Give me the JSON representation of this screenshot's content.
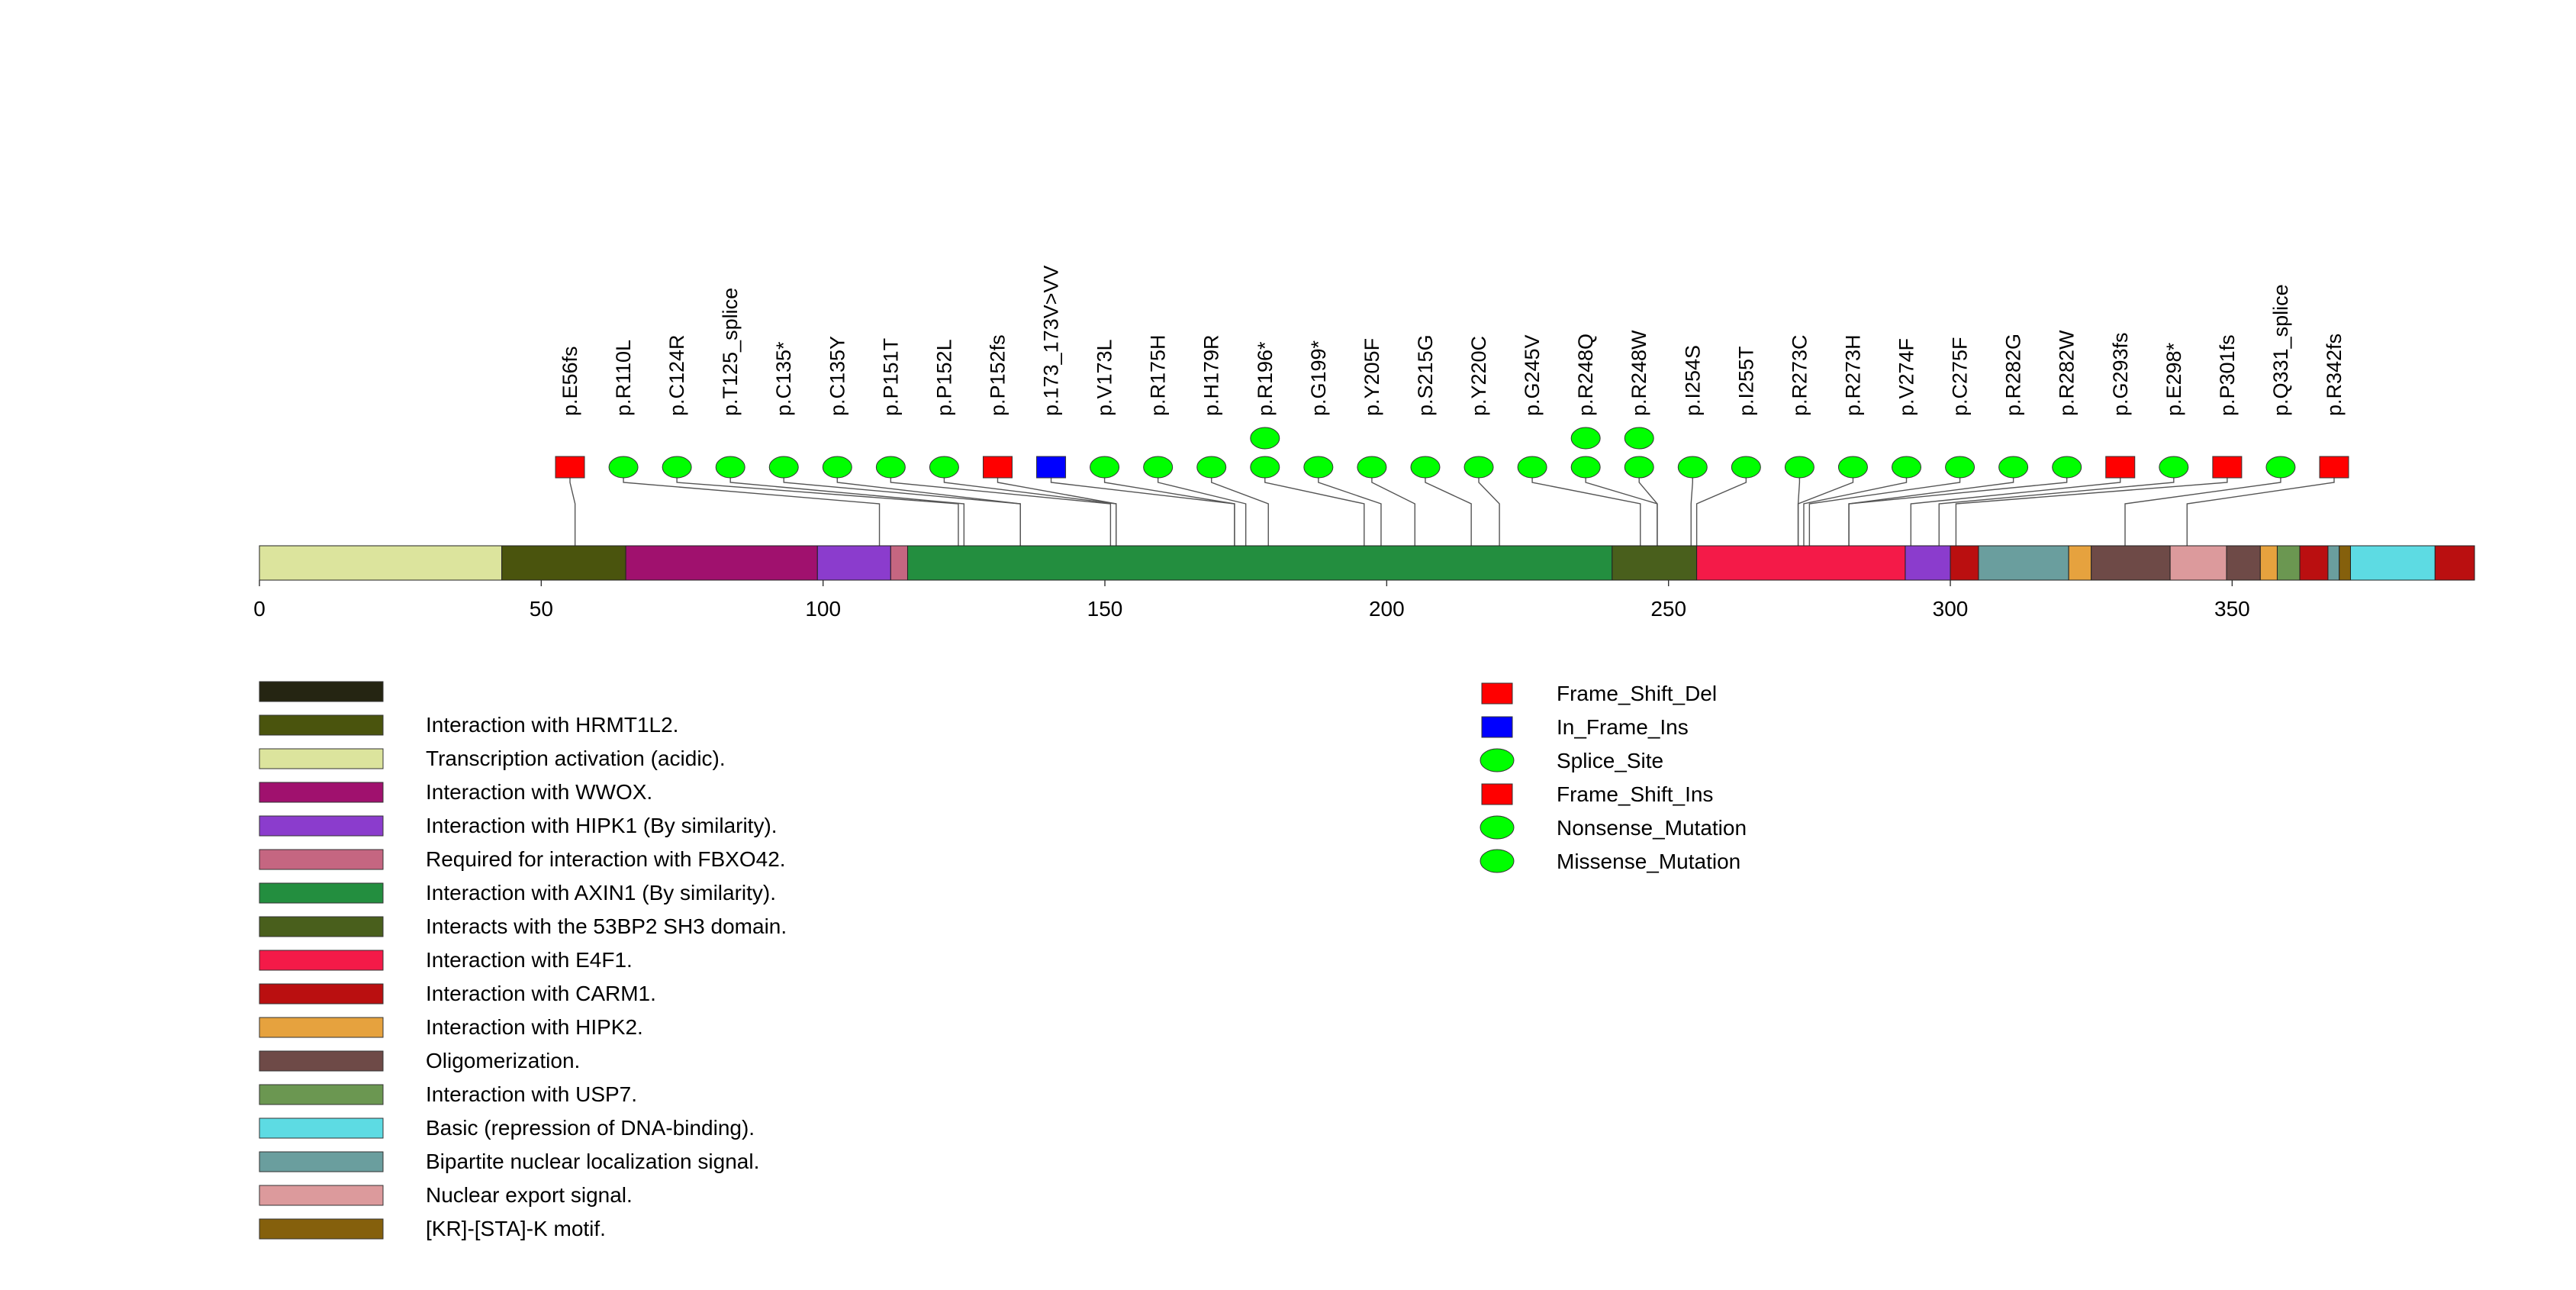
{
  "chart_data": {
    "type": "lollipop",
    "protein_length": 393,
    "axis": {
      "min": 0,
      "max": 393,
      "ticks": [
        0,
        50,
        100,
        150,
        200,
        250,
        300,
        350
      ]
    },
    "domains": [
      {
        "start": 0,
        "end": 43,
        "label": "Transcription activation (acidic).",
        "color": "#dce49d"
      },
      {
        "start": 43,
        "end": 65,
        "label": "Interaction with HRMT1L2.",
        "color": "#4a540d"
      },
      {
        "start": 65,
        "end": 99,
        "label": "Interaction with WWOX.",
        "color": "#a0116e"
      },
      {
        "start": 99,
        "end": 112,
        "label": "Interaction with HIPK1 (By similarity).",
        "color": "#8b3ccd"
      },
      {
        "start": 112,
        "end": 115,
        "label": "Required for interaction with FBXO42.",
        "color": "#c56681"
      },
      {
        "start": 115,
        "end": 240,
        "label": "Interaction with AXIN1 (By similarity).",
        "color": "#238e3f"
      },
      {
        "start": 240,
        "end": 255,
        "label": "Interacts with the 53BP2 SH3 domain.",
        "color": "#495f1c"
      },
      {
        "start": 255,
        "end": 292,
        "label": "Interaction with E4F1.",
        "color": "#f41a48"
      },
      {
        "start": 292,
        "end": 300,
        "label": "Interaction with HIPK1 (By similarity).",
        "color": "#8b3ccd"
      },
      {
        "start": 300,
        "end": 305,
        "label": "Interaction with CARM1.",
        "color": "#ba0f10"
      },
      {
        "start": 305,
        "end": 321,
        "label": "Bipartite nuclear localization signal.",
        "color": "#6a9e9e"
      },
      {
        "start": 321,
        "end": 325,
        "label": "Interaction with HIPK2.",
        "color": "#e6a23e"
      },
      {
        "start": 325,
        "end": 339,
        "label": "Oligomerization.",
        "color": "#6e4a47"
      },
      {
        "start": 339,
        "end": 349,
        "label": "Nuclear export signal.",
        "color": "#dc9a9c"
      },
      {
        "start": 349,
        "end": 355,
        "label": "Oligomerization.",
        "color": "#6e4a47"
      },
      {
        "start": 355,
        "end": 358,
        "label": "Interaction with HIPK2.",
        "color": "#e6a23e"
      },
      {
        "start": 358,
        "end": 362,
        "label": "Interaction with USP7.",
        "color": "#6b9751"
      },
      {
        "start": 362,
        "end": 367,
        "label": "Interaction with CARM1.",
        "color": "#ba0f10"
      },
      {
        "start": 367,
        "end": 369,
        "label": "Bipartite nuclear localization signal.",
        "color": "#6a9e9e"
      },
      {
        "start": 369,
        "end": 371,
        "label": "[KR]-[STA]-K motif.",
        "color": "#85600c"
      },
      {
        "start": 371,
        "end": 386,
        "label": "Basic (repression of DNA-binding).",
        "color": "#5ddbe3"
      },
      {
        "start": 386,
        "end": 393,
        "label": "Interaction with CARM1.",
        "color": "#ba0f10"
      }
    ],
    "mutations": [
      {
        "label": "p.E56fs",
        "position": 56,
        "type": "Frame_Shift_Del",
        "count": 1
      },
      {
        "label": "p.R110L",
        "position": 110,
        "type": "Missense_Mutation",
        "count": 1
      },
      {
        "label": "p.C124R",
        "position": 124,
        "type": "Missense_Mutation",
        "count": 1
      },
      {
        "label": "p.T125_splice",
        "position": 125,
        "type": "Splice_Site",
        "count": 1
      },
      {
        "label": "p.C135*",
        "position": 135,
        "type": "Nonsense_Mutation",
        "count": 1
      },
      {
        "label": "p.C135Y",
        "position": 135,
        "type": "Missense_Mutation",
        "count": 1
      },
      {
        "label": "p.P151T",
        "position": 151,
        "type": "Missense_Mutation",
        "count": 1
      },
      {
        "label": "p.P152L",
        "position": 152,
        "type": "Missense_Mutation",
        "count": 1
      },
      {
        "label": "p.P152fs",
        "position": 152,
        "type": "Frame_Shift_Del",
        "count": 1
      },
      {
        "label": "p.173_173V>VV",
        "position": 173,
        "type": "In_Frame_Ins",
        "count": 1
      },
      {
        "label": "p.V173L",
        "position": 173,
        "type": "Missense_Mutation",
        "count": 1
      },
      {
        "label": "p.R175H",
        "position": 175,
        "type": "Missense_Mutation",
        "count": 1
      },
      {
        "label": "p.H179R",
        "position": 179,
        "type": "Missense_Mutation",
        "count": 1
      },
      {
        "label": "p.R196*",
        "position": 196,
        "type": "Nonsense_Mutation",
        "count": 2
      },
      {
        "label": "p.G199*",
        "position": 199,
        "type": "Nonsense_Mutation",
        "count": 1
      },
      {
        "label": "p.Y205F",
        "position": 205,
        "type": "Missense_Mutation",
        "count": 1
      },
      {
        "label": "p.S215G",
        "position": 215,
        "type": "Missense_Mutation",
        "count": 1
      },
      {
        "label": "p.Y220C",
        "position": 220,
        "type": "Missense_Mutation",
        "count": 1
      },
      {
        "label": "p.G245V",
        "position": 245,
        "type": "Missense_Mutation",
        "count": 1
      },
      {
        "label": "p.R248Q",
        "position": 248,
        "type": "Missense_Mutation",
        "count": 2
      },
      {
        "label": "p.R248W",
        "position": 248,
        "type": "Missense_Mutation",
        "count": 2
      },
      {
        "label": "p.I254S",
        "position": 254,
        "type": "Missense_Mutation",
        "count": 1
      },
      {
        "label": "p.I255T",
        "position": 255,
        "type": "Missense_Mutation",
        "count": 1
      },
      {
        "label": "p.R273C",
        "position": 273,
        "type": "Missense_Mutation",
        "count": 1
      },
      {
        "label": "p.R273H",
        "position": 273,
        "type": "Missense_Mutation",
        "count": 1
      },
      {
        "label": "p.V274F",
        "position": 274,
        "type": "Missense_Mutation",
        "count": 1
      },
      {
        "label": "p.C275F",
        "position": 275,
        "type": "Missense_Mutation",
        "count": 1
      },
      {
        "label": "p.R282G",
        "position": 282,
        "type": "Missense_Mutation",
        "count": 1
      },
      {
        "label": "p.R282W",
        "position": 282,
        "type": "Missense_Mutation",
        "count": 1
      },
      {
        "label": "p.G293fs",
        "position": 293,
        "type": "Frame_Shift_Del",
        "count": 1
      },
      {
        "label": "p.E298*",
        "position": 298,
        "type": "Nonsense_Mutation",
        "count": 1
      },
      {
        "label": "p.P301fs",
        "position": 301,
        "type": "Frame_Shift_Del",
        "count": 1
      },
      {
        "label": "p.Q331_splice",
        "position": 331,
        "type": "Splice_Site",
        "count": 1
      },
      {
        "label": "p.R342fs",
        "position": 342,
        "type": "Frame_Shift_Ins",
        "count": 1
      }
    ],
    "domain_legend": [
      {
        "label": "",
        "color": "#252512"
      },
      {
        "label": "Interaction with HRMT1L2.",
        "color": "#4a540d"
      },
      {
        "label": "Transcription activation (acidic).",
        "color": "#dce49d"
      },
      {
        "label": "Interaction with WWOX.",
        "color": "#a0116e"
      },
      {
        "label": "Interaction with HIPK1 (By similarity).",
        "color": "#8b3ccd"
      },
      {
        "label": "Required for interaction with FBXO42.",
        "color": "#c56681"
      },
      {
        "label": "Interaction with AXIN1 (By similarity).",
        "color": "#238e3f"
      },
      {
        "label": "Interacts with the 53BP2 SH3 domain.",
        "color": "#495f1c"
      },
      {
        "label": "Interaction with E4F1.",
        "color": "#f41a48"
      },
      {
        "label": "Interaction with CARM1.",
        "color": "#ba0f10"
      },
      {
        "label": "Interaction with HIPK2.",
        "color": "#e6a23e"
      },
      {
        "label": "Oligomerization.",
        "color": "#6e4a47"
      },
      {
        "label": "Interaction with USP7.",
        "color": "#6b9751"
      },
      {
        "label": "Basic (repression of DNA-binding).",
        "color": "#5ddbe3"
      },
      {
        "label": "Bipartite nuclear localization signal.",
        "color": "#6a9e9e"
      },
      {
        "label": "Nuclear export signal.",
        "color": "#dc9a9c"
      },
      {
        "label": "[KR]-[STA]-K motif.",
        "color": "#85600c"
      }
    ],
    "mutation_legend": [
      {
        "label": "Frame_Shift_Del",
        "shape": "square",
        "color": "#ff0000"
      },
      {
        "label": "In_Frame_Ins",
        "shape": "square",
        "color": "#0000ff"
      },
      {
        "label": "Splice_Site",
        "shape": "ellipse",
        "color": "#00ff00"
      },
      {
        "label": "Frame_Shift_Ins",
        "shape": "square",
        "color": "#ff0000"
      },
      {
        "label": "Nonsense_Mutation",
        "shape": "ellipse",
        "color": "#00ff00"
      },
      {
        "label": "Missense_Mutation",
        "shape": "ellipse",
        "color": "#00ff00"
      }
    ]
  }
}
